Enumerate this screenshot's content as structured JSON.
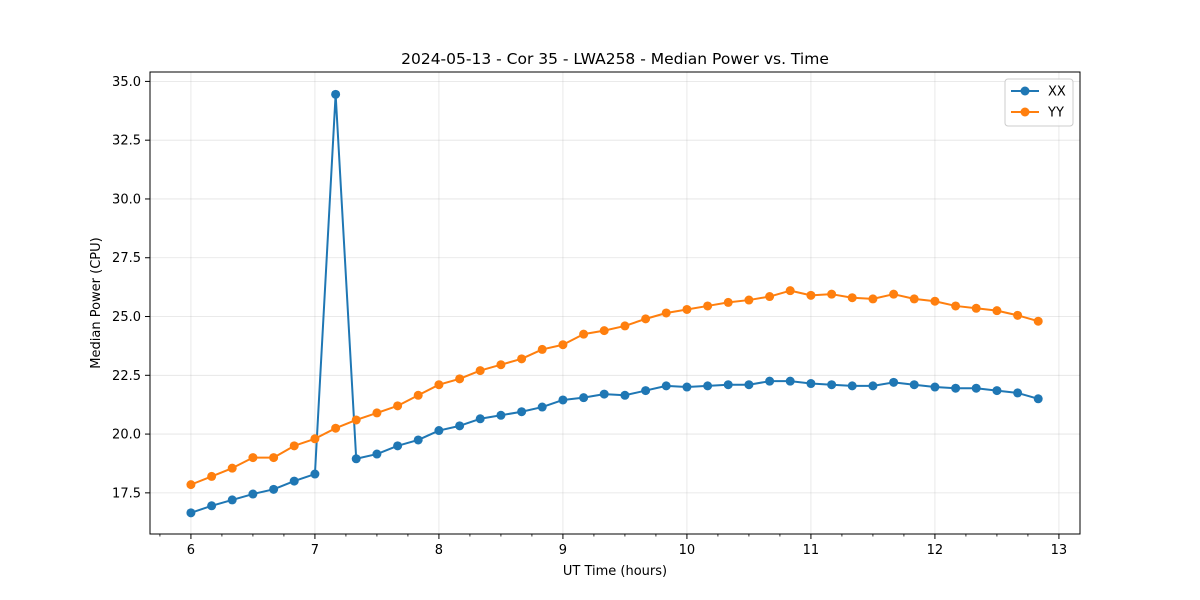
{
  "chart_data": {
    "type": "line",
    "title": "2024-05-13 - Cor 35 - LWA258 - Median Power vs. Time",
    "xlabel": "UT Time (hours)",
    "ylabel": "Median Power (CPU)",
    "xlim": [
      5.67,
      13.17
    ],
    "ylim": [
      15.75,
      35.4
    ],
    "xticks": [
      6,
      7,
      8,
      9,
      10,
      11,
      12,
      13
    ],
    "xtick_labels": [
      "6",
      "7",
      "8",
      "9",
      "10",
      "11",
      "12",
      "13"
    ],
    "xminor_step": 0.25,
    "yticks": [
      17.5,
      20.0,
      22.5,
      25.0,
      27.5,
      30.0,
      32.5,
      35.0
    ],
    "ytick_labels": [
      "17.5",
      "20.0",
      "22.5",
      "25.0",
      "27.5",
      "30.0",
      "32.5",
      "35.0"
    ],
    "grid": true,
    "legend_position": "top-right",
    "x": [
      6.0,
      6.167,
      6.333,
      6.5,
      6.667,
      6.833,
      7.0,
      7.167,
      7.333,
      7.5,
      7.667,
      7.833,
      8.0,
      8.167,
      8.333,
      8.5,
      8.667,
      8.833,
      9.0,
      9.167,
      9.333,
      9.5,
      9.667,
      9.833,
      10.0,
      10.167,
      10.333,
      10.5,
      10.667,
      10.833,
      11.0,
      11.167,
      11.333,
      11.5,
      11.667,
      11.833,
      12.0,
      12.167,
      12.333,
      12.5,
      12.667,
      12.833
    ],
    "series": [
      {
        "name": "XX",
        "color": "#1f77b4",
        "values": [
          16.65,
          16.95,
          17.2,
          17.45,
          17.65,
          18.0,
          18.3,
          34.45,
          18.95,
          19.15,
          19.5,
          19.75,
          20.15,
          20.35,
          20.65,
          20.8,
          20.95,
          21.15,
          21.45,
          21.55,
          21.7,
          21.65,
          21.85,
          22.05,
          22.0,
          22.05,
          22.1,
          22.1,
          22.25,
          22.25,
          22.15,
          22.1,
          22.05,
          22.05,
          22.2,
          22.1,
          22.0,
          21.95,
          21.95,
          21.85,
          21.75,
          21.5
        ]
      },
      {
        "name": "YY",
        "color": "#ff7f0e",
        "values": [
          17.85,
          18.2,
          18.55,
          19.0,
          19.0,
          19.5,
          19.8,
          20.25,
          20.6,
          20.9,
          21.2,
          21.65,
          22.1,
          22.35,
          22.7,
          22.95,
          23.2,
          23.6,
          23.8,
          24.25,
          24.4,
          24.6,
          24.9,
          25.15,
          25.3,
          25.45,
          25.6,
          25.7,
          25.85,
          26.1,
          25.9,
          25.95,
          25.8,
          25.75,
          25.95,
          25.75,
          25.65,
          25.45,
          25.35,
          25.25,
          25.05,
          24.8
        ]
      }
    ]
  }
}
